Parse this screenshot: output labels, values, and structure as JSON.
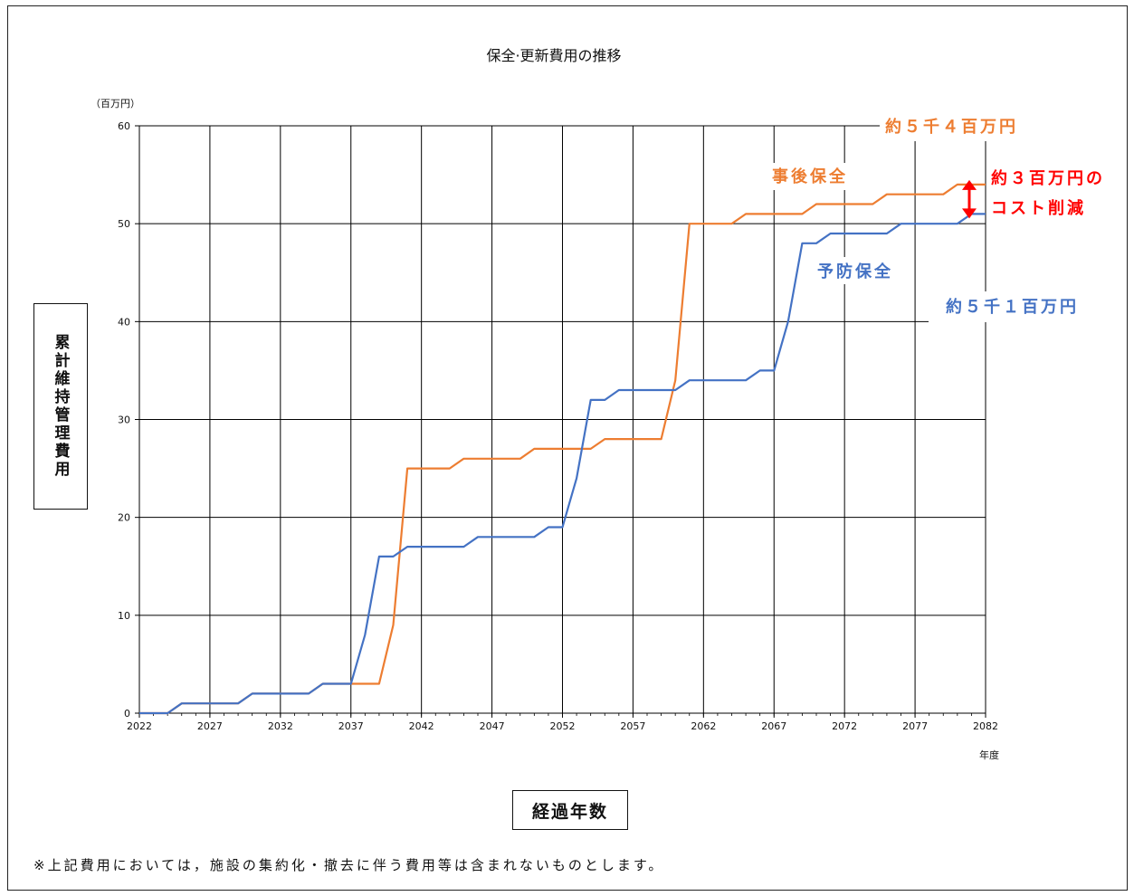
{
  "chart_data": {
    "type": "line",
    "title": "保全·更新費用の推移",
    "y_unit": "（百万円）",
    "x_unit": "年度",
    "xlabel": "経過年数",
    "ylabel": "累計維持管理費用",
    "ylim": [
      0,
      60
    ],
    "xlim": [
      2022,
      2082
    ],
    "y_ticks": [
      0,
      10,
      20,
      30,
      40,
      50,
      60
    ],
    "x_ticks": [
      2022,
      2027,
      2032,
      2037,
      2042,
      2047,
      2052,
      2057,
      2062,
      2067,
      2072,
      2077,
      2082
    ],
    "grid": true,
    "x": [
      2022,
      2023,
      2024,
      2025,
      2026,
      2027,
      2028,
      2029,
      2030,
      2031,
      2032,
      2033,
      2034,
      2035,
      2036,
      2037,
      2038,
      2039,
      2040,
      2041,
      2042,
      2043,
      2044,
      2045,
      2046,
      2047,
      2048,
      2049,
      2050,
      2051,
      2052,
      2053,
      2054,
      2055,
      2056,
      2057,
      2058,
      2059,
      2060,
      2061,
      2062,
      2063,
      2064,
      2065,
      2066,
      2067,
      2068,
      2069,
      2070,
      2071,
      2072,
      2073,
      2074,
      2075,
      2076,
      2077,
      2078,
      2079,
      2080,
      2081,
      2082
    ],
    "series": [
      {
        "name": "事後保全",
        "color": "#ED7D31",
        "values": [
          0,
          0,
          0,
          1,
          1,
          1,
          1,
          1,
          2,
          2,
          2,
          2,
          2,
          3,
          3,
          3,
          3,
          3,
          9,
          25,
          25,
          25,
          25,
          26,
          26,
          26,
          26,
          26,
          27,
          27,
          27,
          27,
          27,
          28,
          28,
          28,
          28,
          28,
          34,
          50,
          50,
          50,
          50,
          51,
          51,
          51,
          51,
          51,
          52,
          52,
          52,
          52,
          52,
          53,
          53,
          53,
          53,
          53,
          54,
          54,
          54
        ]
      },
      {
        "name": "予防保全",
        "color": "#4472C4",
        "values": [
          0,
          0,
          0,
          1,
          1,
          1,
          1,
          1,
          2,
          2,
          2,
          2,
          2,
          3,
          3,
          3,
          8,
          16,
          16,
          17,
          17,
          17,
          17,
          17,
          18,
          18,
          18,
          18,
          18,
          19,
          19,
          24,
          32,
          32,
          33,
          33,
          33,
          33,
          33,
          34,
          34,
          34,
          34,
          34,
          35,
          35,
          40,
          48,
          48,
          49,
          49,
          49,
          49,
          49,
          50,
          50,
          50,
          50,
          50,
          51,
          51
        ]
      }
    ],
    "annotations": {
      "post_total": "約５千４百万円",
      "pre_total": "約５千１百万円",
      "reduction_line1": "約３百万円の",
      "reduction_line2": "コスト削減",
      "reduction_color": "#FF0000"
    },
    "footnote": "※上記費用においては，施設の集約化・撤去に伴う費用等は含まれないものとします。"
  }
}
